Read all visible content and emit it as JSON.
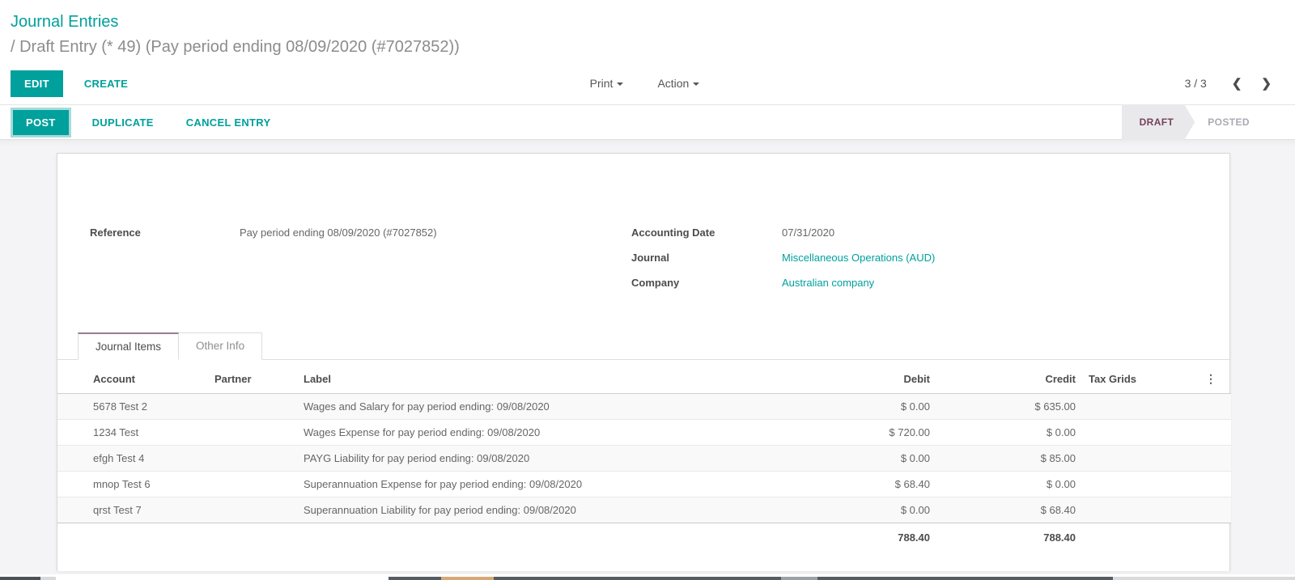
{
  "breadcrumb": {
    "parent": "Journal Entries",
    "current": "/ Draft Entry (* 49) (Pay period ending 08/09/2020 (#7027852))"
  },
  "toolbar": {
    "edit_label": "EDIT",
    "create_label": "CREATE",
    "print_label": "Print",
    "action_label": "Action"
  },
  "pager": {
    "value": "3 / 3"
  },
  "statusbar": {
    "post_label": "POST",
    "duplicate_label": "DUPLICATE",
    "cancel_label": "CANCEL ENTRY",
    "stages": [
      {
        "label": "DRAFT",
        "active": true
      },
      {
        "label": "POSTED",
        "active": false
      }
    ]
  },
  "form": {
    "reference": {
      "label": "Reference",
      "value": "Pay period ending 08/09/2020 (#7027852)"
    },
    "accounting_date": {
      "label": "Accounting Date",
      "value": "07/31/2020"
    },
    "journal": {
      "label": "Journal",
      "value": "Miscellaneous Operations (AUD)"
    },
    "company": {
      "label": "Company",
      "value": "Australian company"
    },
    "tabs": [
      {
        "label": "Journal Items",
        "active": true
      },
      {
        "label": "Other Info",
        "active": false
      }
    ]
  },
  "table": {
    "columns": {
      "account": "Account",
      "partner": "Partner",
      "label": "Label",
      "debit": "Debit",
      "credit": "Credit",
      "tax_grids": "Tax Grids"
    },
    "rows": [
      {
        "account": "5678 Test 2",
        "partner": "",
        "label": "Wages and Salary for pay period ending: 09/08/2020",
        "debit": "$ 0.00",
        "credit": "$ 635.00",
        "tax_grids": ""
      },
      {
        "account": "1234 Test",
        "partner": "",
        "label": "Wages Expense for pay period ending: 09/08/2020",
        "debit": "$ 720.00",
        "credit": "$ 0.00",
        "tax_grids": ""
      },
      {
        "account": "efgh Test 4",
        "partner": "",
        "label": "PAYG Liability for pay period ending: 09/08/2020",
        "debit": "$ 0.00",
        "credit": "$ 85.00",
        "tax_grids": ""
      },
      {
        "account": "mnop Test 6",
        "partner": "",
        "label": "Superannuation Expense for pay period ending: 09/08/2020",
        "debit": "$ 68.40",
        "credit": "$ 0.00",
        "tax_grids": ""
      },
      {
        "account": "qrst Test 7",
        "partner": "",
        "label": "Superannuation Liability for pay period ending: 09/08/2020",
        "debit": "$ 0.00",
        "credit": "$ 68.40",
        "tax_grids": ""
      }
    ],
    "totals": {
      "debit": "788.40",
      "credit": "788.40"
    }
  },
  "colors": {
    "accent_teal": "#00a09d",
    "stage_active_text": "#77415b",
    "tab_accent": "#9b7b90",
    "page_background": "#f4f4f6"
  }
}
